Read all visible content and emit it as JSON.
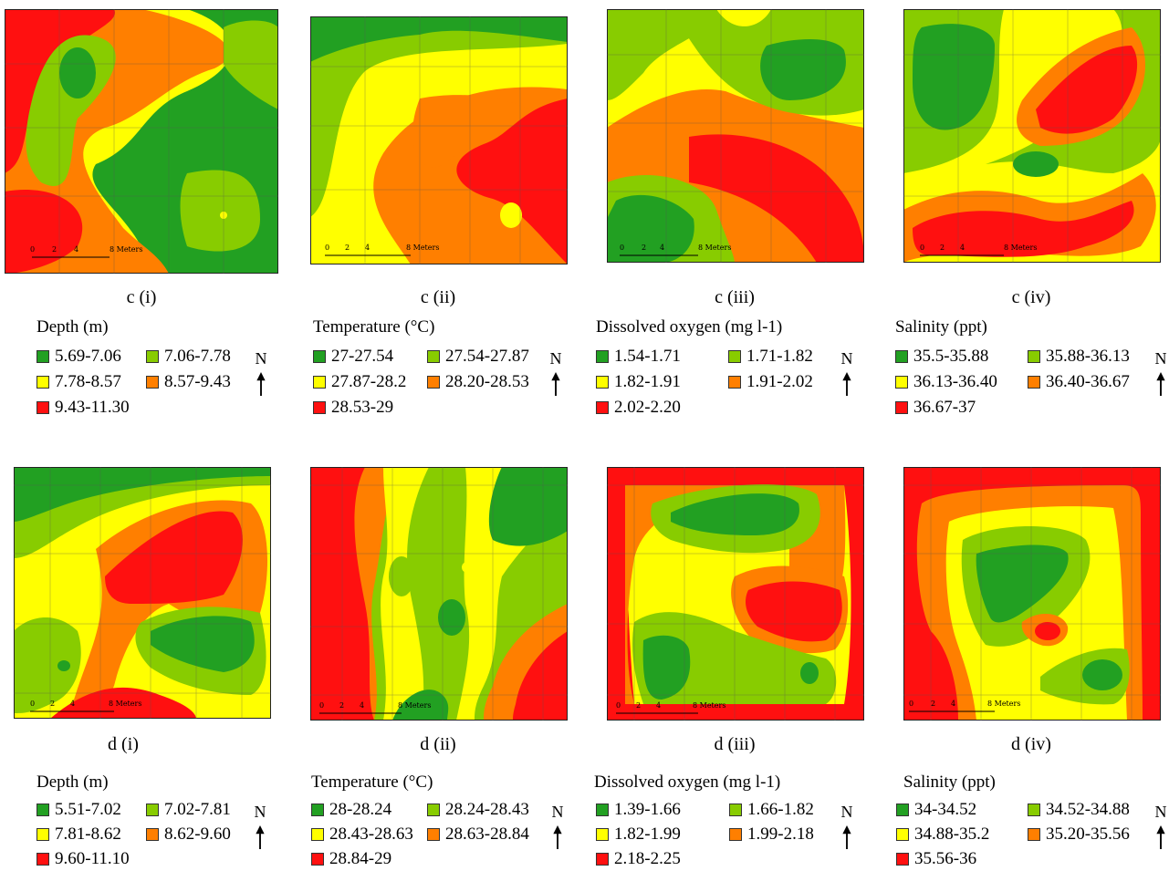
{
  "colors": {
    "c1": "#22a022",
    "c2": "#88cc00",
    "c3": "#ffff00",
    "c4": "#ff7f00",
    "c5": "#ff1010"
  },
  "scale_labels": [
    "0",
    "2",
    "4",
    "8 Meters"
  ],
  "north_label": "N",
  "rows": [
    {
      "panels": [
        {
          "caption": "c (i)",
          "legend_title": "Depth (m)",
          "items": [
            "5.69-7.06",
            "7.06-7.78",
            "7.78-8.57",
            "8.57-9.43",
            "9.43-11.30"
          ]
        },
        {
          "caption": "c (ii)",
          "legend_title": "Temperature (°C)",
          "items": [
            "27-27.54",
            "27.54-27.87",
            "27.87-28.2",
            "28.20-28.53",
            "28.53-29"
          ]
        },
        {
          "caption": "c (iii)",
          "legend_title": "Dissolved oxygen (mg l-1)",
          "items": [
            "1.54-1.71",
            "1.71-1.82",
            "1.82-1.91",
            "1.91-2.02",
            "2.02-2.20"
          ]
        },
        {
          "caption": "c (iv)",
          "legend_title": "Salinity (ppt)",
          "items": [
            "35.5-35.88",
            "35.88-36.13",
            "36.13-36.40",
            "36.40-36.67",
            "36.67-37"
          ]
        }
      ]
    },
    {
      "panels": [
        {
          "caption": "d (i)",
          "legend_title": "Depth (m)",
          "items": [
            "5.51-7.02",
            "7.02-7.81",
            "7.81-8.62",
            "8.62-9.60",
            "9.60-11.10"
          ]
        },
        {
          "caption": "d (ii)",
          "legend_title": "Temperature (°C)",
          "items": [
            "28-28.24",
            "28.24-28.43",
            "28.43-28.63",
            "28.63-28.84",
            "28.84-29"
          ]
        },
        {
          "caption": "d (iii)",
          "legend_title": "Dissolved oxygen (mg l-1)",
          "items": [
            "1.39-1.66",
            "1.66-1.82",
            "1.82-1.99",
            "1.99-2.18",
            "2.18-2.25"
          ]
        },
        {
          "caption": "d (iv)",
          "legend_title": "Salinity (ppt)",
          "items": [
            "34-34.52",
            "34.52-34.88",
            "34.88-35.2",
            "35.20-35.56",
            "35.56-36"
          ]
        }
      ]
    }
  ]
}
